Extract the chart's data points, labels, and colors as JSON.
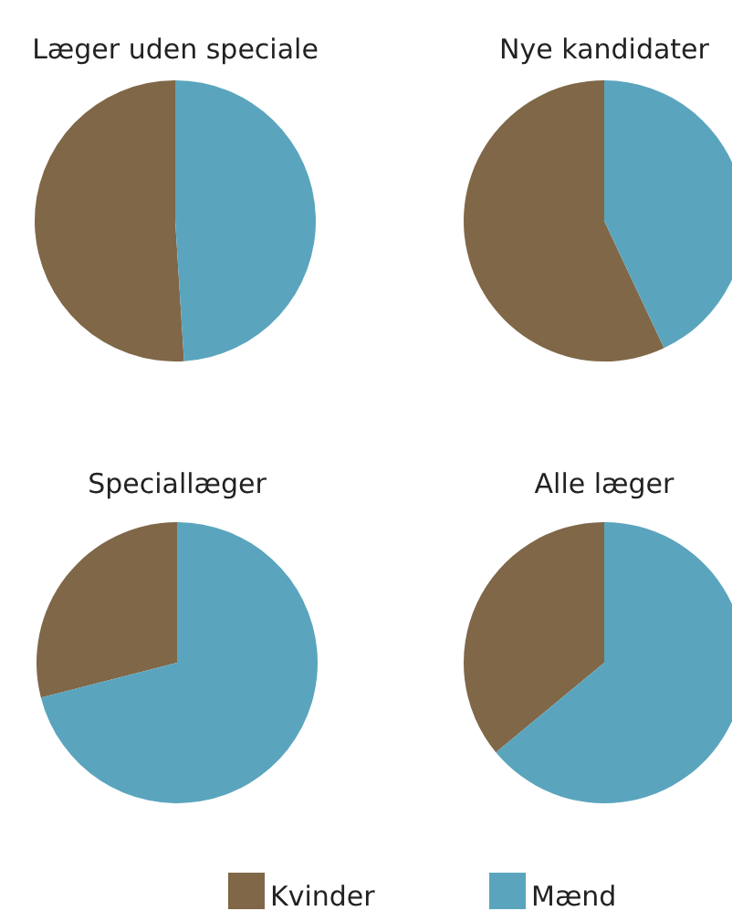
{
  "chart_data": [
    {
      "type": "pie",
      "title": "Læger uden speciale",
      "categories": [
        "Kvinder",
        "Mænd"
      ],
      "values": [
        51,
        49
      ],
      "colors": [
        "#7f6748",
        "#5aa5bd"
      ],
      "legend": "bottom"
    },
    {
      "type": "pie",
      "title": "Nye kandidater",
      "categories": [
        null,
        null
      ],
      "values": [
        57,
        43
      ],
      "colors": [
        "#7f6748",
        "#5aa5bd"
      ]
    },
    {
      "type": "pie",
      "title": "Speciallæger",
      "categories": [
        null,
        null
      ],
      "values": [
        29,
        71
      ],
      "colors": [
        "#7f6748",
        "#5aa5bd"
      ]
    },
    {
      "type": "pie",
      "title": "Alle læger",
      "categories": [
        null,
        null
      ],
      "values": [
        36,
        64
      ],
      "colors": [
        "#7f6748",
        "#5aa5bd"
      ]
    }
  ]
}
